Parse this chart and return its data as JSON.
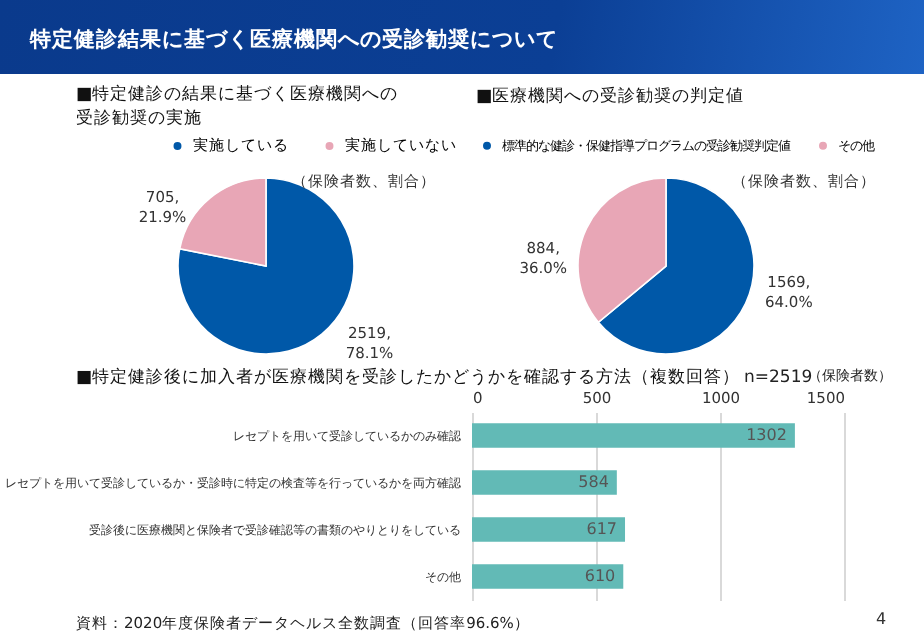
{
  "chart_data": [
    {
      "type": "other",
      "title": "特定健診結果に基づく医療機関への受診勧奨について",
      "annotations": [
        "4"
      ]
    },
    {
      "type": "pie",
      "title": "■特定健診の結果に基づく医療機関への受診勧奨の実施",
      "subtitle": "（保険者数、割合）",
      "categories": [
        "実施している",
        "実施していない"
      ],
      "values": [
        2519,
        705
      ],
      "colors": [
        "#0058a8",
        "#e8a6b6"
      ],
      "value_labels": [
        "2519, 78.1%",
        "705, 21.9%"
      ],
      "legend": "top"
    },
    {
      "type": "pie",
      "title": "■医療機関への受診勧奨の判定値",
      "subtitle": "（保険者数、割合）",
      "categories": [
        "標準的な健診・保健指導プログラムの受診勧奨判定値",
        "その他"
      ],
      "values": [
        1569,
        884
      ],
      "colors": [
        "#0058a8",
        "#e8a6b6"
      ],
      "value_labels": [
        "1569, 64.0%",
        "884, 36.0%"
      ],
      "legend": "top"
    },
    {
      "type": "bar",
      "orientation": "horizontal",
      "title": "■特定健診後に加入者が医療機関を受診したかどうかを確認する方法（複数回答）",
      "categories": [
        "レセプトを用いて受診しているかのみ確認",
        "レセプトを用いて受診しているか・受診時に特定の検査等を行っているかを両方確認",
        "受診後に医療機関と保険者で受診確認等の書類のやりとりをしている",
        "その他"
      ],
      "values": [
        1302,
        584,
        617,
        610
      ],
      "color": "#62bab6",
      "xlim": [
        0,
        1500
      ],
      "xticks": [
        0,
        500,
        1000,
        1500
      ],
      "grid": "x",
      "data_labels": true,
      "annotations": [
        "n=2519",
        "（保険者数）",
        "資料：2020年度保険者データヘルス全数調査（回答率96.6%）"
      ]
    }
  ]
}
